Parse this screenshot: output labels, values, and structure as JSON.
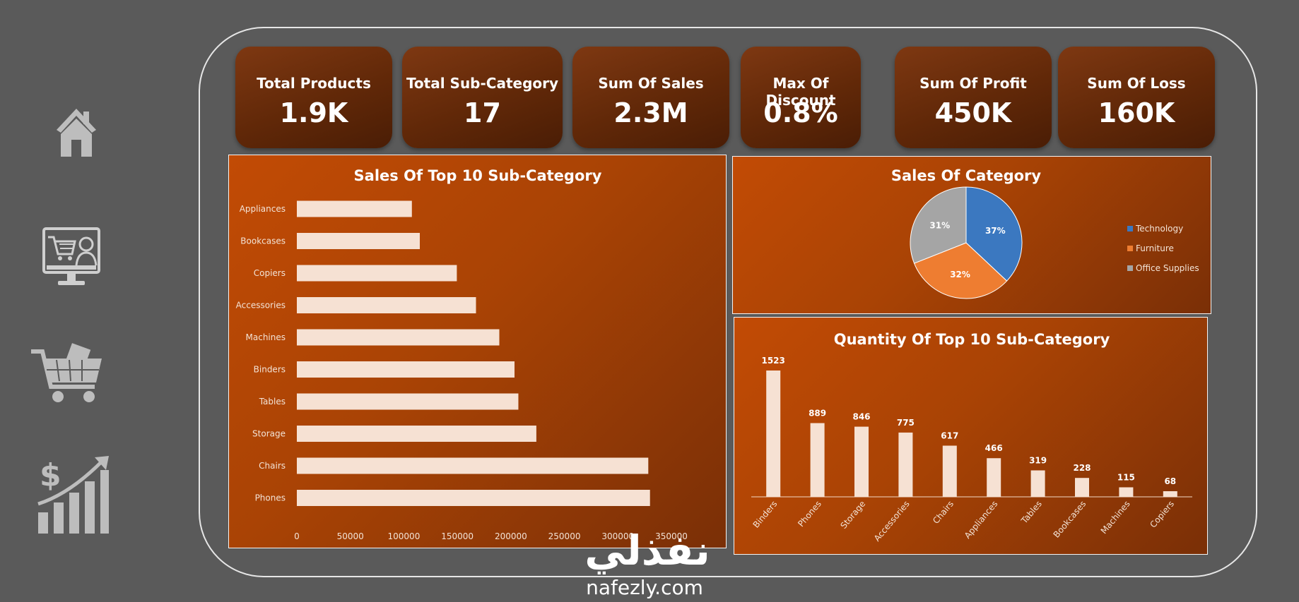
{
  "nav": {
    "icons": [
      "home-icon",
      "online-shopping-icon",
      "shopping-cart-icon",
      "sales-growth-icon"
    ]
  },
  "kpis": [
    {
      "title": "Total Products",
      "value": "1.9K"
    },
    {
      "title": "Total Sub-Category",
      "value": "17"
    },
    {
      "title": "Sum Of Sales",
      "value": "2.3M"
    },
    {
      "title": "Max Of Discount",
      "value": "0.8%"
    },
    {
      "title": "Sum Of Profit",
      "value": "450K"
    },
    {
      "title": "Sum Of Loss",
      "value": "160K"
    }
  ],
  "colors": {
    "kpi_bg": "#612808",
    "panel_bg": "#b24705",
    "bar": "#f6e1d3",
    "technology": "#3b78c0",
    "furniture": "#ee7d31",
    "office_supplies": "#a5a5a5"
  },
  "chart_data": [
    {
      "type": "bar",
      "orientation": "horizontal",
      "title": "Sales Of Top 10 Sub-Category",
      "categories": [
        "Appliances",
        "Bookcases",
        "Copiers",
        "Accessories",
        "Machines",
        "Binders",
        "Tables",
        "Storage",
        "Chairs",
        "Phones"
      ],
      "values": [
        107500,
        114900,
        149500,
        167400,
        189200,
        203400,
        207000,
        223800,
        328400,
        330000
      ],
      "xticks": [
        "0",
        "50000",
        "100000",
        "150000",
        "200000",
        "250000",
        "300000",
        "350000"
      ],
      "xlim": [
        0,
        350000
      ],
      "grid": false
    },
    {
      "type": "pie",
      "title": "Sales Of Category",
      "labels": [
        "Technology",
        "Furniture",
        "Office Supplies"
      ],
      "values": [
        37,
        32,
        31
      ],
      "value_labels": [
        "37%",
        "32%",
        "31%"
      ],
      "legend": "right"
    },
    {
      "type": "bar",
      "orientation": "vertical",
      "title": "Quantity Of Top 10 Sub-Category",
      "categories": [
        "Binders",
        "Phones",
        "Storage",
        "Accessories",
        "Chairs",
        "Appliances",
        "Tables",
        "Bookcases",
        "Machines",
        "Copiers"
      ],
      "values": [
        1523,
        889,
        846,
        775,
        617,
        466,
        319,
        228,
        115,
        68
      ],
      "grid": false
    }
  ],
  "watermark": {
    "arabic": "نفذلي",
    "latin": "nafezly.com"
  }
}
